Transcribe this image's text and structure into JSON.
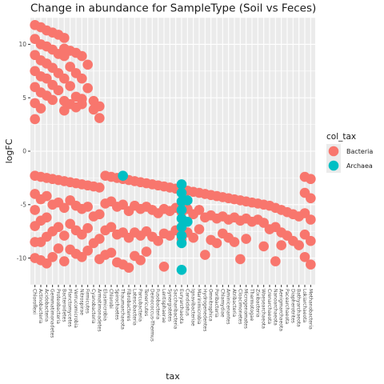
{
  "chart_data": {
    "type": "scatter",
    "title": "Change in abundance for SampleType (Soil vs Feces)",
    "xlabel": "tax",
    "ylabel": "logFC",
    "ylim": [
      -12.5,
      12.5
    ],
    "yticks": [
      -10,
      -5,
      0,
      5,
      10
    ],
    "grid": true,
    "legend": {
      "title": "col_tax",
      "position": "right",
      "entries": [
        {
          "label": "Bacteria",
          "color": "#F8766D"
        },
        {
          "label": "Archaea",
          "color": "#00BFC4"
        }
      ]
    },
    "x_tick_labels": [
      "Chloroflexi",
      "Actinobacteria",
      "Acidobacteria",
      "Gemmatimonadetes",
      "Proteobacteria",
      "Bacteroidetes",
      "Planctomycetes",
      "Verrucomicrobia",
      "Nitrospirae",
      "Firmicutes",
      "Cyanobacteria",
      "Armatimonadetes",
      "Elusimicrobia",
      "Chlorobi",
      "Spirochaetes",
      "Thaumarchaeota",
      "Fibrobacteres",
      "Latescibacteria",
      "Parcubacteria",
      "Tenericutes",
      "Deinococcus-Thermus",
      "Fusobacteria",
      "Lentisphaerae",
      "Synergistetes",
      "Saccharibacteria",
      "Euryarchaeota",
      "Candidatus",
      "Ignavibacteriae",
      "Marinimicrobia",
      "Hydrogenedentes",
      "Omnitrophica",
      "Poribacteria",
      "Chlamydiae",
      "Aminicenantes",
      "Atribacteria",
      "Cloacimonetes",
      "Microgenomates",
      "Thermotogae",
      "Zixibacteria",
      "Woesearchaeota",
      "Crenarchaeota",
      "Nanoarchaeota",
      "Aenigmarchaeota",
      "Pacearchaeota",
      "Diapherotrites",
      "Bathyarchaeota",
      "Lokiarchaeota",
      "Methanobacteria"
    ],
    "series": [
      {
        "name": "Bacteria",
        "color": "#F8766D",
        "points": [
          [
            1,
            11.8
          ],
          [
            1,
            10.5
          ],
          [
            1,
            9
          ],
          [
            1,
            7.5
          ],
          [
            1,
            6
          ],
          [
            1,
            4.5
          ],
          [
            1,
            3
          ],
          [
            2,
            11.6
          ],
          [
            2,
            10
          ],
          [
            2,
            8.5
          ],
          [
            2,
            7
          ],
          [
            2,
            5.5
          ],
          [
            2,
            4
          ],
          [
            3,
            11.3
          ],
          [
            3,
            9.8
          ],
          [
            3,
            8.2
          ],
          [
            3,
            6.8
          ],
          [
            3,
            5.2
          ],
          [
            4,
            11.1
          ],
          [
            4,
            9.5
          ],
          [
            4,
            7.8
          ],
          [
            4,
            6.2
          ],
          [
            4,
            4.8
          ],
          [
            5,
            10.9
          ],
          [
            5,
            9.1
          ],
          [
            5,
            7.3
          ],
          [
            5,
            5.7
          ],
          [
            6,
            10.6
          ],
          [
            6,
            9.6
          ],
          [
            6,
            8.9
          ],
          [
            6,
            6.8
          ],
          [
            6,
            4.7
          ],
          [
            6,
            3.8
          ],
          [
            7,
            9.4
          ],
          [
            7,
            7.9
          ],
          [
            7,
            6.1
          ],
          [
            7,
            4.4
          ],
          [
            8,
            9.2
          ],
          [
            8,
            7.3
          ],
          [
            8,
            5.1
          ],
          [
            8,
            4.1
          ],
          [
            9,
            8.9
          ],
          [
            9,
            6.8
          ],
          [
            9,
            4.9
          ],
          [
            9,
            4.4
          ],
          [
            10,
            8.1
          ],
          [
            10,
            5.9
          ],
          [
            11,
            4.7
          ],
          [
            11,
            3.9
          ],
          [
            12,
            4.2
          ],
          [
            12,
            3.1
          ],
          [
            1,
            -2.3
          ],
          [
            1,
            -4
          ],
          [
            1,
            -5.5
          ],
          [
            1,
            -7
          ],
          [
            1,
            -8.5
          ],
          [
            1,
            -10
          ],
          [
            2,
            -2.4
          ],
          [
            2,
            -4.5
          ],
          [
            2,
            -6.5
          ],
          [
            2,
            -8.5
          ],
          [
            2,
            -10.2
          ],
          [
            3,
            -2.5
          ],
          [
            3,
            -4.2
          ],
          [
            3,
            -6.2
          ],
          [
            3,
            -8
          ],
          [
            3,
            -10.5
          ],
          [
            4,
            -2.6
          ],
          [
            4,
            -5
          ],
          [
            4,
            -7.5
          ],
          [
            4,
            -9.9
          ],
          [
            5,
            -2.7
          ],
          [
            5,
            -4.8
          ],
          [
            5,
            -7.1
          ],
          [
            5,
            -9.1
          ],
          [
            6,
            -2.8
          ],
          [
            6,
            -5.3
          ],
          [
            6,
            -7.9
          ],
          [
            6,
            -10.3
          ],
          [
            7,
            -2.9
          ],
          [
            7,
            -4.6
          ],
          [
            7,
            -6.8
          ],
          [
            7,
            -9.2
          ],
          [
            8,
            -3
          ],
          [
            8,
            -5.1
          ],
          [
            8,
            -7.4
          ],
          [
            8,
            -9.6
          ],
          [
            9,
            -3.1
          ],
          [
            9,
            -5.4
          ],
          [
            9,
            -7.8
          ],
          [
            9,
            -9.9
          ],
          [
            10,
            -3.2
          ],
          [
            10,
            -5.2
          ],
          [
            10,
            -7.2
          ],
          [
            10,
            -9.3
          ],
          [
            11,
            -3.3
          ],
          [
            11,
            -6.1
          ],
          [
            11,
            -8.6
          ],
          [
            12,
            -3.4
          ],
          [
            12,
            -5.9
          ],
          [
            12,
            -8.2
          ],
          [
            12,
            -10.1
          ],
          [
            13,
            -2.3
          ],
          [
            13,
            -4.9
          ],
          [
            13,
            -7.4
          ],
          [
            13,
            -9.7
          ],
          [
            14,
            -2.4
          ],
          [
            14,
            -4.7
          ],
          [
            14,
            -7.1
          ],
          [
            14,
            -9.5
          ],
          [
            15,
            -2.5
          ],
          [
            15,
            -5.2
          ],
          [
            15,
            -7.8
          ],
          [
            15,
            -10.4
          ],
          [
            16,
            -2.6
          ],
          [
            16,
            -5
          ],
          [
            16,
            -7.6
          ],
          [
            16,
            -10.6
          ],
          [
            17,
            -2.7
          ],
          [
            17,
            -5.6
          ],
          [
            17,
            -8.1
          ],
          [
            17,
            -10.9
          ],
          [
            18,
            -2.8
          ],
          [
            18,
            -5.1
          ],
          [
            18,
            -7.6
          ],
          [
            18,
            -9.8
          ],
          [
            19,
            -2.9
          ],
          [
            19,
            -5.4
          ],
          [
            19,
            -7.9
          ],
          [
            19,
            -10.2
          ],
          [
            20,
            -3
          ],
          [
            20,
            -5.2
          ],
          [
            20,
            -7.5
          ],
          [
            20,
            -9.4
          ],
          [
            21,
            -3.1
          ],
          [
            21,
            -5.5
          ],
          [
            21,
            -8
          ],
          [
            22,
            -3.2
          ],
          [
            22,
            -5.8
          ],
          [
            22,
            -8.4
          ],
          [
            23,
            -3.3
          ],
          [
            23,
            -5.4
          ],
          [
            23,
            -7.7
          ],
          [
            23,
            -10.8
          ],
          [
            24,
            -3.4
          ],
          [
            24,
            -5.6
          ],
          [
            24,
            -7.9
          ],
          [
            25,
            -3.5
          ],
          [
            25,
            -5.3
          ],
          [
            25,
            -7.4
          ],
          [
            26,
            -3.6
          ],
          [
            26,
            -5.7
          ],
          [
            26,
            -8.2
          ],
          [
            27,
            -3.7
          ],
          [
            27,
            -5.4
          ],
          [
            27,
            -7.6
          ],
          [
            28,
            -3.8
          ],
          [
            28,
            -5.9
          ],
          [
            28,
            -8.1
          ],
          [
            29,
            -3.9
          ],
          [
            29,
            -5.5
          ],
          [
            29,
            -7.3
          ],
          [
            30,
            -4
          ],
          [
            30,
            -6.2
          ],
          [
            30,
            -9.7
          ],
          [
            31,
            -4.1
          ],
          [
            31,
            -6
          ],
          [
            31,
            -8.3
          ],
          [
            32,
            -4.2
          ],
          [
            32,
            -6.3
          ],
          [
            32,
            -8.6
          ],
          [
            33,
            -4.3
          ],
          [
            33,
            -6.1
          ],
          [
            33,
            -7.7
          ],
          [
            34,
            -4.4
          ],
          [
            34,
            -6.4
          ],
          [
            34,
            -8.1
          ],
          [
            35,
            -4.5
          ],
          [
            35,
            -6.2
          ],
          [
            35,
            -8.5
          ],
          [
            36,
            -4.6
          ],
          [
            36,
            -6.5
          ],
          [
            36,
            -10.1
          ],
          [
            37,
            -4.7
          ],
          [
            37,
            -6.3
          ],
          [
            37,
            -8.2
          ],
          [
            38,
            -4.8
          ],
          [
            38,
            -6.6
          ],
          [
            39,
            -4.9
          ],
          [
            39,
            -6.4
          ],
          [
            40,
            -5
          ],
          [
            40,
            -6.7
          ],
          [
            40,
            -8.9
          ],
          [
            41,
            -5.1
          ],
          [
            41,
            -7.3
          ],
          [
            42,
            -5.3
          ],
          [
            42,
            -7.1
          ],
          [
            42,
            -10.3
          ],
          [
            43,
            -5.5
          ],
          [
            43,
            -7.6
          ],
          [
            43,
            -8.8
          ],
          [
            44,
            -5.7
          ],
          [
            44,
            -7.9
          ],
          [
            45,
            -5.9
          ],
          [
            45,
            -8.4
          ],
          [
            46,
            -6.1
          ],
          [
            46,
            -8.8
          ],
          [
            47,
            -2.4
          ],
          [
            47,
            -3.9
          ],
          [
            47,
            -5.8
          ],
          [
            47,
            -7.8
          ],
          [
            47,
            -9.9
          ],
          [
            48,
            -2.6
          ],
          [
            48,
            -4.4
          ],
          [
            48,
            -6.4
          ],
          [
            48,
            -8.4
          ],
          [
            48,
            -10.6
          ]
        ]
      },
      {
        "name": "Archaea",
        "color": "#00BFC4",
        "points": [
          [
            16,
            -2.3
          ],
          [
            26,
            -3.1
          ],
          [
            26,
            -3.9
          ],
          [
            26,
            -4.7
          ],
          [
            26,
            -5.5
          ],
          [
            26,
            -6.3
          ],
          [
            26,
            -7.1
          ],
          [
            26,
            -7.9
          ],
          [
            26,
            -8.6
          ],
          [
            26,
            -11.1
          ],
          [
            27,
            -4.6
          ],
          [
            27,
            -6.6
          ]
        ]
      }
    ]
  }
}
